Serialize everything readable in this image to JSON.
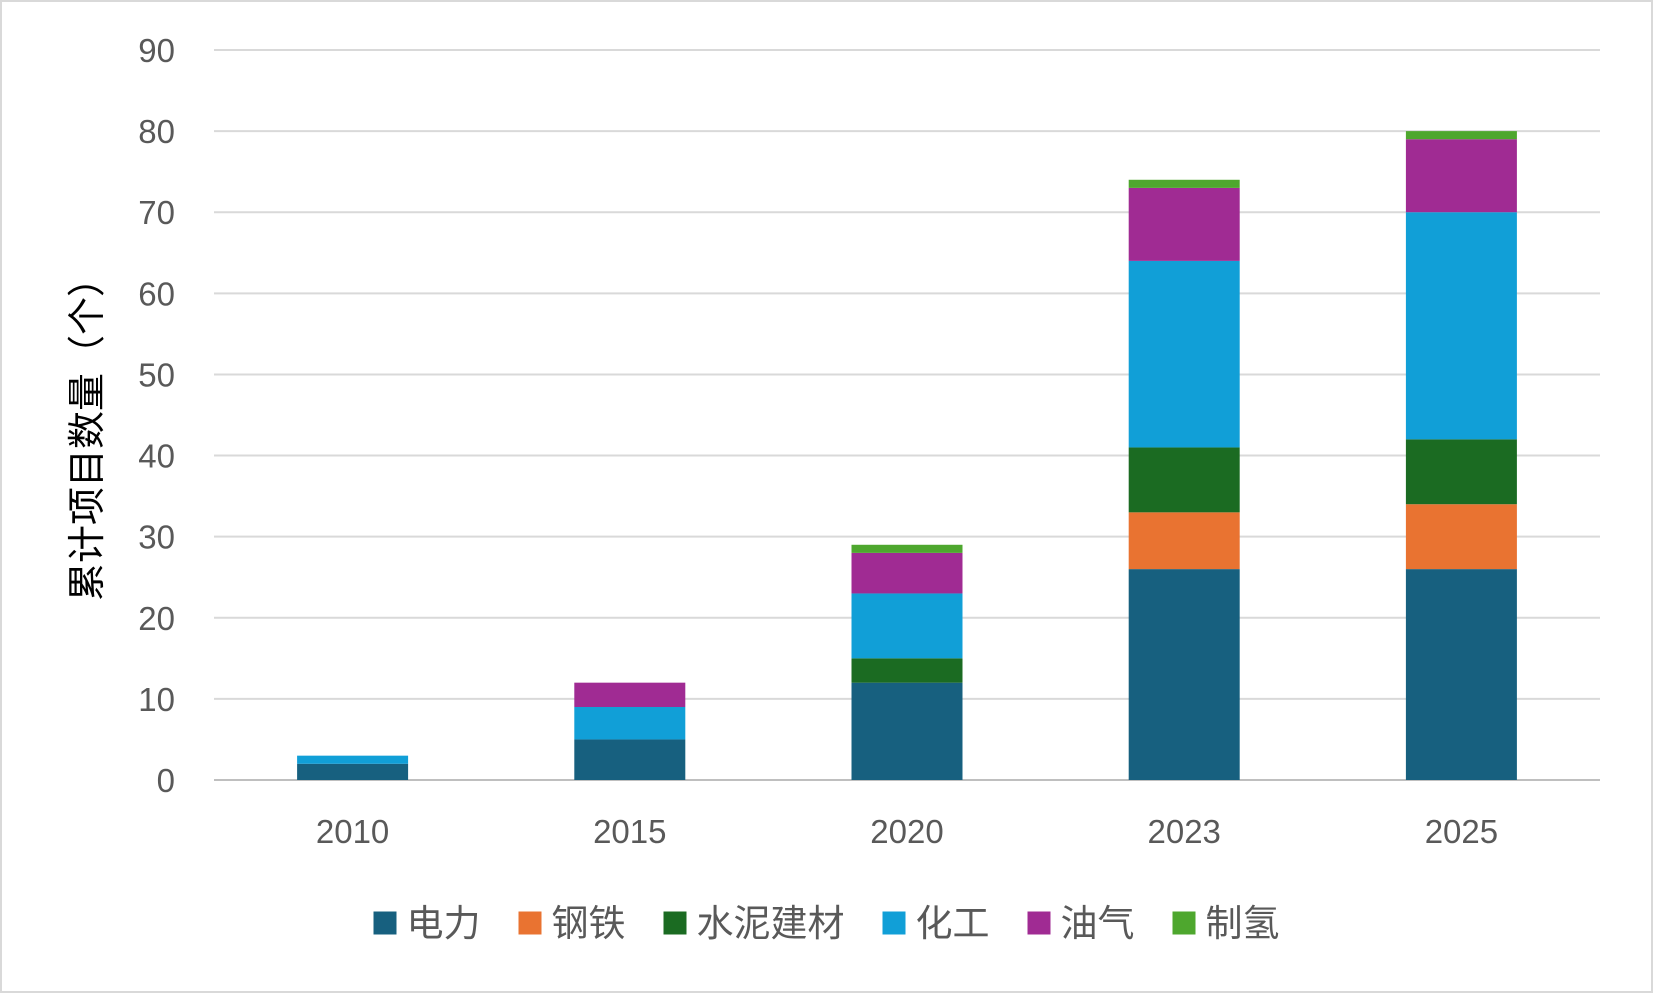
{
  "chart_data": {
    "type": "bar",
    "stacked": true,
    "categories": [
      "2010",
      "2015",
      "2020",
      "2023",
      "2025"
    ],
    "ylabel": "累计项目数量（个）",
    "xlabel": "",
    "title": "",
    "ylim": [
      0,
      90
    ],
    "yticks": [
      0,
      10,
      20,
      30,
      40,
      50,
      60,
      70,
      80,
      90
    ],
    "grid": true,
    "legend_position": "bottom",
    "series": [
      {
        "name": "电力",
        "color": "#17607f",
        "values": [
          2,
          5,
          12,
          26,
          26
        ]
      },
      {
        "name": "钢铁",
        "color": "#e97331",
        "values": [
          0,
          0,
          0,
          7,
          8
        ]
      },
      {
        "name": "水泥建材",
        "color": "#1b6b22",
        "values": [
          0,
          0,
          3,
          8,
          8
        ]
      },
      {
        "name": "化工",
        "color": "#119fd7",
        "values": [
          1,
          4,
          8,
          23,
          28
        ]
      },
      {
        "name": "油气",
        "color": "#a02b93",
        "values": [
          0,
          3,
          5,
          9,
          9
        ]
      },
      {
        "name": "制氢",
        "color": "#4ea72e",
        "values": [
          0,
          0,
          1,
          1,
          1
        ]
      }
    ]
  }
}
